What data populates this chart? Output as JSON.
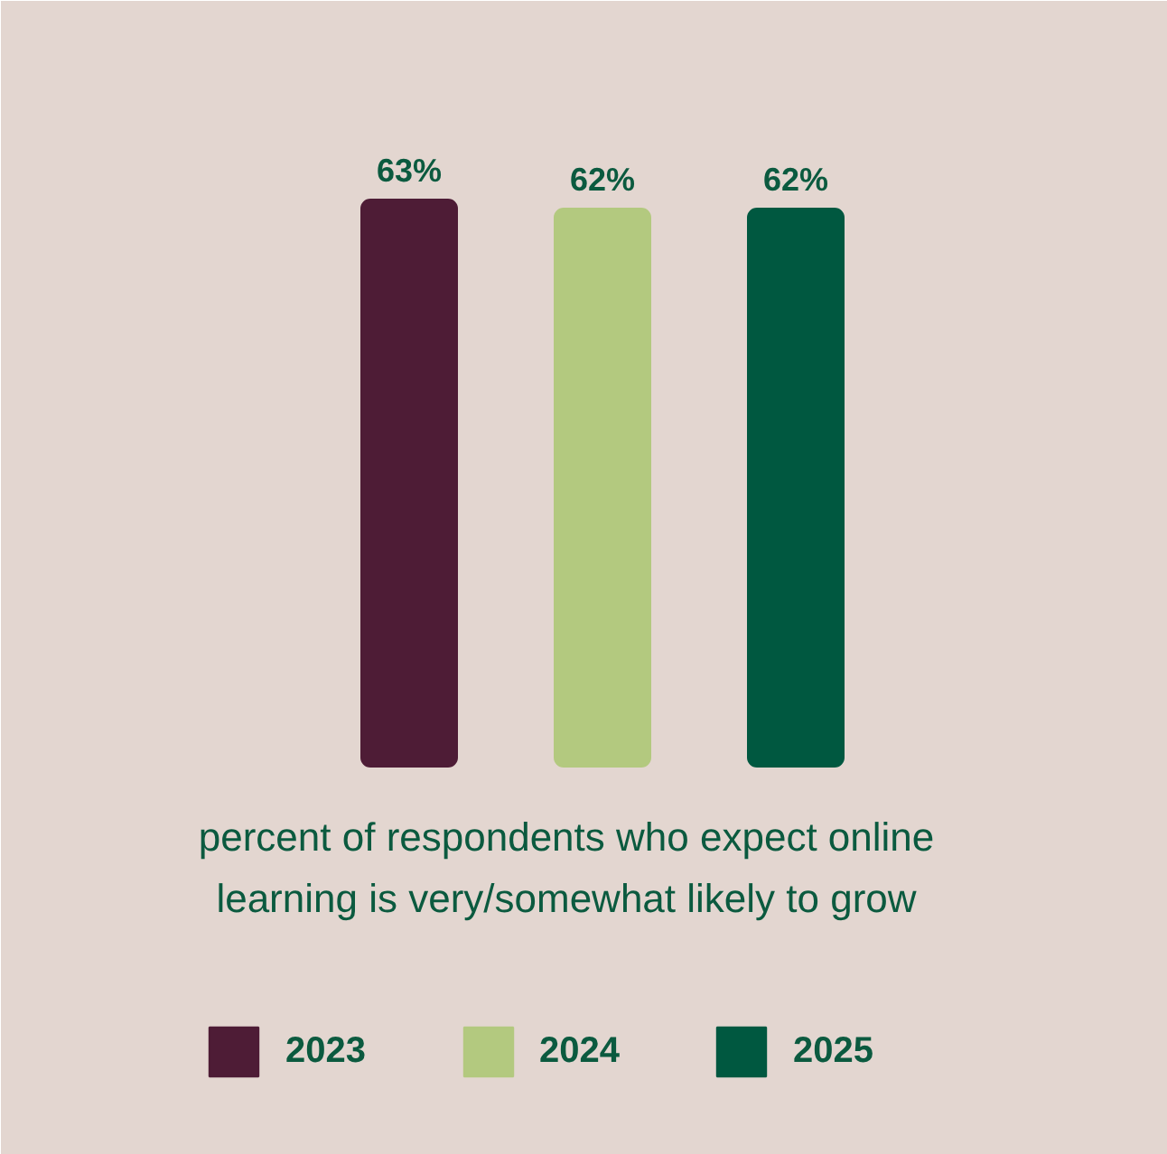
{
  "chart_data": {
    "type": "bar",
    "categories": [
      null,
      null,
      null
    ],
    "xlabel": "percent of respondents who expect online learning is very/somewhat likely to grow",
    "series": [
      {
        "name": "2023",
        "color": "#4e1c36",
        "values": [
          63,
          null,
          null
        ],
        "value_labels": [
          "63%",
          null,
          null
        ]
      },
      {
        "name": "2024",
        "color": "#b3c97f",
        "values": [
          null,
          62,
          null
        ],
        "value_labels": [
          null,
          "62%",
          null
        ]
      },
      {
        "name": "2025",
        "color": "#005840",
        "values": [
          null,
          null,
          62
        ],
        "value_labels": [
          null,
          null,
          "62%"
        ]
      }
    ],
    "stacked": true,
    "legend": "bottom"
  }
}
